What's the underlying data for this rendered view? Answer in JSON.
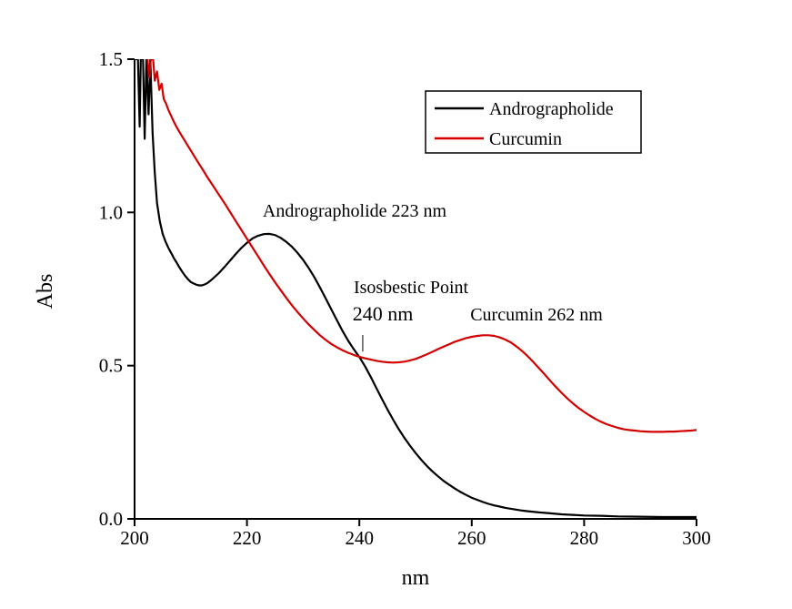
{
  "figure": {
    "background": "#ffffff"
  },
  "chart_data": {
    "type": "line",
    "title": "",
    "xlabel": "nm",
    "ylabel": "Abs",
    "xlim": [
      200,
      300
    ],
    "ylim": [
      0,
      1.5
    ],
    "x_ticks": [
      "200",
      "220",
      "240",
      "260",
      "280",
      "300"
    ],
    "y_ticks": [
      "0.0",
      "0.5",
      "1.0",
      "1.5"
    ],
    "grid": false,
    "axis_color": "#000000",
    "legend": {
      "position": "top-right",
      "border_color": "#000000",
      "entries": [
        {
          "label": "Andrographolide",
          "color": "#000000"
        },
        {
          "label": "Curcumin",
          "color": "#d40000"
        }
      ]
    },
    "annotations": [
      {
        "text": "Andrographolide 223 nm",
        "color": "#1a1a1a",
        "x": 239,
        "y": 0.99
      },
      {
        "text": "Isosbestic Point",
        "color": "#0000cd",
        "x": 249,
        "y": 0.74
      },
      {
        "text": "240 nm",
        "color": "#0000cd",
        "x": 244,
        "y": 0.65
      },
      {
        "text": "Curcumin 262 nm",
        "color": "#cc0000",
        "x": 271.5,
        "y": 0.65
      }
    ],
    "isosbestic_marker": {
      "x": 240.6,
      "y_from": 0.546,
      "y_to": 0.6,
      "color": "#555555"
    },
    "series": [
      {
        "name": "Andrographolide",
        "color": "#000000",
        "points": [
          [
            200,
            1.5
          ],
          [
            200.6,
            1.5
          ],
          [
            200.9,
            1.28
          ],
          [
            201.1,
            1.5
          ],
          [
            201.5,
            1.5
          ],
          [
            201.8,
            1.24
          ],
          [
            202.1,
            1.5
          ],
          [
            202.5,
            1.32
          ],
          [
            202.8,
            1.5
          ],
          [
            203.2,
            1.26
          ],
          [
            203.6,
            1.13
          ],
          [
            204,
            1.03
          ],
          [
            204.5,
            0.97
          ],
          [
            205,
            0.93
          ],
          [
            205.5,
            0.905
          ],
          [
            206,
            0.885
          ],
          [
            206.5,
            0.868
          ],
          [
            207,
            0.85
          ],
          [
            207.5,
            0.836
          ],
          [
            208,
            0.82
          ],
          [
            208.5,
            0.806
          ],
          [
            209,
            0.793
          ],
          [
            209.5,
            0.782
          ],
          [
            210,
            0.773
          ],
          [
            210.5,
            0.768
          ],
          [
            211,
            0.764
          ],
          [
            211.5,
            0.762
          ],
          [
            212,
            0.762
          ],
          [
            212.5,
            0.765
          ],
          [
            213,
            0.77
          ],
          [
            213.5,
            0.777
          ],
          [
            214,
            0.785
          ],
          [
            215,
            0.802
          ],
          [
            216,
            0.822
          ],
          [
            217,
            0.843
          ],
          [
            218,
            0.864
          ],
          [
            219,
            0.884
          ],
          [
            220,
            0.901
          ],
          [
            221,
            0.915
          ],
          [
            222,
            0.924
          ],
          [
            223,
            0.929
          ],
          [
            224,
            0.93
          ],
          [
            225,
            0.926
          ],
          [
            226,
            0.917
          ],
          [
            227,
            0.904
          ],
          [
            228,
            0.888
          ],
          [
            229,
            0.868
          ],
          [
            230,
            0.845
          ],
          [
            231,
            0.818
          ],
          [
            232,
            0.788
          ],
          [
            233,
            0.755
          ],
          [
            234,
            0.72
          ],
          [
            235,
            0.684
          ],
          [
            236,
            0.648
          ],
          [
            237,
            0.613
          ],
          [
            238,
            0.582
          ],
          [
            239,
            0.554
          ],
          [
            240,
            0.528
          ],
          [
            241,
            0.498
          ],
          [
            242,
            0.464
          ],
          [
            243,
            0.428
          ],
          [
            244,
            0.392
          ],
          [
            245,
            0.357
          ],
          [
            246,
            0.324
          ],
          [
            247,
            0.293
          ],
          [
            248,
            0.265
          ],
          [
            249,
            0.239
          ],
          [
            250,
            0.215
          ],
          [
            251,
            0.193
          ],
          [
            252,
            0.173
          ],
          [
            253,
            0.155
          ],
          [
            254,
            0.139
          ],
          [
            255,
            0.124
          ],
          [
            256,
            0.111
          ],
          [
            257,
            0.099
          ],
          [
            258,
            0.088
          ],
          [
            259,
            0.078
          ],
          [
            260,
            0.069
          ],
          [
            261,
            0.062
          ],
          [
            262,
            0.055
          ],
          [
            263,
            0.049
          ],
          [
            264,
            0.044
          ],
          [
            265,
            0.04
          ],
          [
            266,
            0.036
          ],
          [
            267,
            0.033
          ],
          [
            268,
            0.03
          ],
          [
            269,
            0.027
          ],
          [
            270,
            0.025
          ],
          [
            272,
            0.021
          ],
          [
            274,
            0.018
          ],
          [
            276,
            0.015
          ],
          [
            278,
            0.013
          ],
          [
            280,
            0.011
          ],
          [
            283,
            0.01
          ],
          [
            286,
            0.008
          ],
          [
            290,
            0.007
          ],
          [
            294,
            0.006
          ],
          [
            297,
            0.006
          ],
          [
            300,
            0.006
          ]
        ]
      },
      {
        "name": "Curcumin",
        "color": "#d40000",
        "points": [
          [
            202.3,
            1.5
          ],
          [
            202.6,
            1.44
          ],
          [
            202.9,
            1.5
          ],
          [
            203.3,
            1.5
          ],
          [
            203.6,
            1.43
          ],
          [
            204,
            1.46
          ],
          [
            204.4,
            1.4
          ],
          [
            204.8,
            1.42
          ],
          [
            205.2,
            1.37
          ],
          [
            205.6,
            1.355
          ],
          [
            206,
            1.335
          ],
          [
            206.5,
            1.315
          ],
          [
            207,
            1.295
          ],
          [
            207.5,
            1.278
          ],
          [
            208,
            1.262
          ],
          [
            208.5,
            1.247
          ],
          [
            209,
            1.232
          ],
          [
            209.5,
            1.217
          ],
          [
            210,
            1.202
          ],
          [
            211,
            1.172
          ],
          [
            212,
            1.143
          ],
          [
            213,
            1.114
          ],
          [
            214,
            1.086
          ],
          [
            215,
            1.058
          ],
          [
            216,
            1.03
          ],
          [
            217,
            1.001
          ],
          [
            218,
            0.972
          ],
          [
            219,
            0.943
          ],
          [
            220,
            0.914
          ],
          [
            221,
            0.885
          ],
          [
            222,
            0.856
          ],
          [
            223,
            0.827
          ],
          [
            224,
            0.799
          ],
          [
            225,
            0.772
          ],
          [
            226,
            0.746
          ],
          [
            227,
            0.721
          ],
          [
            228,
            0.697
          ],
          [
            229,
            0.675
          ],
          [
            230,
            0.654
          ],
          [
            231,
            0.634
          ],
          [
            232,
            0.616
          ],
          [
            233,
            0.599
          ],
          [
            234,
            0.584
          ],
          [
            235,
            0.571
          ],
          [
            236,
            0.56
          ],
          [
            237,
            0.55
          ],
          [
            238,
            0.542
          ],
          [
            239,
            0.535
          ],
          [
            240,
            0.529
          ],
          [
            241,
            0.524
          ],
          [
            242,
            0.52
          ],
          [
            243,
            0.516
          ],
          [
            244,
            0.513
          ],
          [
            245,
            0.511
          ],
          [
            246,
            0.51
          ],
          [
            247,
            0.511
          ],
          [
            248,
            0.513
          ],
          [
            249,
            0.517
          ],
          [
            250,
            0.522
          ],
          [
            251,
            0.529
          ],
          [
            252,
            0.537
          ],
          [
            253,
            0.545
          ],
          [
            254,
            0.554
          ],
          [
            255,
            0.562
          ],
          [
            256,
            0.57
          ],
          [
            257,
            0.578
          ],
          [
            258,
            0.584
          ],
          [
            259,
            0.59
          ],
          [
            260,
            0.594
          ],
          [
            261,
            0.597
          ],
          [
            262,
            0.599
          ],
          [
            263,
            0.599
          ],
          [
            264,
            0.597
          ],
          [
            265,
            0.592
          ],
          [
            266,
            0.585
          ],
          [
            267,
            0.575
          ],
          [
            268,
            0.562
          ],
          [
            269,
            0.547
          ],
          [
            270,
            0.53
          ],
          [
            271,
            0.511
          ],
          [
            272,
            0.491
          ],
          [
            273,
            0.471
          ],
          [
            274,
            0.45
          ],
          [
            275,
            0.43
          ],
          [
            276,
            0.411
          ],
          [
            277,
            0.393
          ],
          [
            278,
            0.377
          ],
          [
            279,
            0.362
          ],
          [
            280,
            0.349
          ],
          [
            281,
            0.337
          ],
          [
            282,
            0.326
          ],
          [
            283,
            0.317
          ],
          [
            284,
            0.309
          ],
          [
            285,
            0.303
          ],
          [
            286,
            0.297
          ],
          [
            287,
            0.293
          ],
          [
            288,
            0.29
          ],
          [
            289,
            0.288
          ],
          [
            290,
            0.286
          ],
          [
            291,
            0.285
          ],
          [
            292,
            0.284
          ],
          [
            293,
            0.284
          ],
          [
            294,
            0.284
          ],
          [
            295,
            0.285
          ],
          [
            296,
            0.285
          ],
          [
            297,
            0.286
          ],
          [
            298,
            0.287
          ],
          [
            299,
            0.288
          ],
          [
            300,
            0.29
          ]
        ]
      }
    ]
  }
}
